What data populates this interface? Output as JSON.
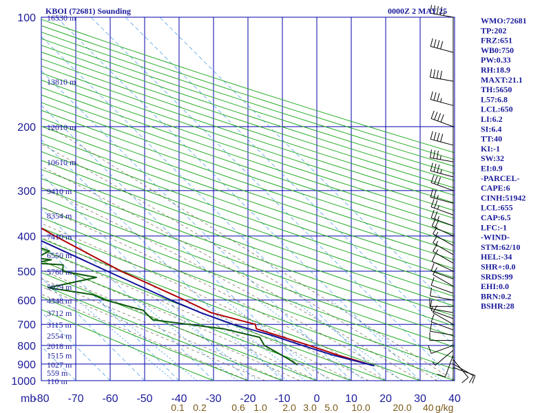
{
  "title_left": "KBOI (72681) Sounding",
  "title_right": "0000Z  2 MAY 25",
  "chart_data": {
    "type": "line",
    "pressure_unit_label": "mb",
    "mixing_unit_label": "g/kg",
    "pressure_levels": [
      100,
      200,
      300,
      400,
      500,
      600,
      700,
      800,
      900,
      1000
    ],
    "temperature_ticks": [
      -80,
      -70,
      -60,
      -50,
      -40,
      -30,
      -20,
      -10,
      0,
      10,
      20,
      30,
      40
    ],
    "mixing_ratio_labels": [
      "0.1",
      "0.2",
      "0.6",
      "1.0",
      "2.0",
      "3.0",
      "5.0",
      "10.0",
      "20.0",
      "40"
    ],
    "height_labels": [
      {
        "p": 100,
        "text": "16530 m"
      },
      {
        "p": 150,
        "text": "13810 m"
      },
      {
        "p": 200,
        "text": "12010 m"
      },
      {
        "p": 250,
        "text": "10610 m"
      },
      {
        "p": 300,
        "text": "9410 m"
      },
      {
        "p": 350,
        "text": "8354 m"
      },
      {
        "p": 400,
        "text": "7410 m"
      },
      {
        "p": 450,
        "text": "6550 m"
      },
      {
        "p": 500,
        "text": "5760 m"
      },
      {
        "p": 550,
        "text": "5029 m"
      },
      {
        "p": 600,
        "text": "4348 m"
      },
      {
        "p": 650,
        "text": "3712 m"
      },
      {
        "p": 700,
        "text": "3115 m"
      },
      {
        "p": 750,
        "text": "2554 m"
      },
      {
        "p": 800,
        "text": "2018 m"
      },
      {
        "p": 850,
        "text": "1515 m"
      },
      {
        "p": 900,
        "text": "1027 m"
      },
      {
        "p": 950,
        "text": "559 m"
      },
      {
        "p": 1000,
        "text": "110 m"
      }
    ],
    "series": [
      {
        "key": "temperature",
        "color": "#b00000",
        "points": [
          [
            100,
            -63
          ],
          [
            150,
            -56
          ],
          [
            200,
            -59
          ],
          [
            230,
            -54
          ],
          [
            300,
            -44
          ],
          [
            400,
            -34
          ],
          [
            500,
            -25
          ],
          [
            600,
            -15
          ],
          [
            650,
            -11
          ],
          [
            700,
            -1.5
          ],
          [
            720,
            -2.5
          ],
          [
            800,
            8
          ],
          [
            850,
            13.5
          ],
          [
            910,
            21
          ]
        ]
      },
      {
        "key": "dewpoint",
        "color": "#0b5a0b",
        "points": [
          [
            170,
            -76
          ],
          [
            200,
            -64
          ],
          [
            215,
            -61
          ],
          [
            225,
            -62
          ],
          [
            260,
            -58
          ],
          [
            300,
            -56
          ],
          [
            330,
            -54
          ],
          [
            360,
            -48
          ],
          [
            380,
            -46
          ],
          [
            400,
            -49
          ],
          [
            410,
            -46
          ],
          [
            440,
            -40
          ],
          [
            460,
            -46
          ],
          [
            465,
            -42
          ],
          [
            475,
            -48
          ],
          [
            480,
            -40
          ],
          [
            500,
            -42
          ],
          [
            520,
            -34
          ],
          [
            555,
            -51
          ],
          [
            580,
            -40
          ],
          [
            600,
            -38
          ],
          [
            640,
            -30
          ],
          [
            680,
            -30
          ],
          [
            720,
            -12
          ],
          [
            760,
            -4
          ],
          [
            800,
            -5
          ],
          [
            870,
            -2
          ],
          [
            905,
            -1
          ]
        ]
      },
      {
        "key": "parcel",
        "color": "#10109a",
        "points": [
          [
            150,
            -82
          ],
          [
            200,
            -73
          ],
          [
            300,
            -55
          ],
          [
            400,
            -41
          ],
          [
            500,
            -29
          ],
          [
            600,
            -19
          ],
          [
            650,
            -14
          ],
          [
            700,
            -8
          ],
          [
            750,
            0
          ],
          [
            800,
            6
          ],
          [
            850,
            12
          ],
          [
            910,
            21
          ]
        ]
      }
    ]
  },
  "wind_profile": [
    {
      "p": 100,
      "dir": 280,
      "spd": 45
    },
    {
      "p": 125,
      "dir": 285,
      "spd": 40
    },
    {
      "p": 150,
      "dir": 280,
      "spd": 40
    },
    {
      "p": 175,
      "dir": 285,
      "spd": 35
    },
    {
      "p": 200,
      "dir": 290,
      "spd": 40
    },
    {
      "p": 225,
      "dir": 285,
      "spd": 40
    },
    {
      "p": 250,
      "dir": 280,
      "spd": 35
    },
    {
      "p": 275,
      "dir": 285,
      "spd": 35
    },
    {
      "p": 300,
      "dir": 290,
      "spd": 30
    },
    {
      "p": 325,
      "dir": 285,
      "spd": 25
    },
    {
      "p": 350,
      "dir": 290,
      "spd": 25
    },
    {
      "p": 375,
      "dir": 290,
      "spd": 25
    },
    {
      "p": 400,
      "dir": 295,
      "spd": 20
    },
    {
      "p": 425,
      "dir": 300,
      "spd": 15
    },
    {
      "p": 450,
      "dir": 300,
      "spd": 15
    },
    {
      "p": 475,
      "dir": 300,
      "spd": 15
    },
    {
      "p": 500,
      "dir": 295,
      "spd": 10
    },
    {
      "p": 525,
      "dir": 290,
      "spd": 10
    },
    {
      "p": 550,
      "dir": 300,
      "spd": 10
    },
    {
      "p": 575,
      "dir": 290,
      "spd": 10
    },
    {
      "p": 600,
      "dir": 280,
      "spd": 10
    },
    {
      "p": 625,
      "dir": 270,
      "spd": 10
    },
    {
      "p": 650,
      "dir": 280,
      "spd": 10
    },
    {
      "p": 675,
      "dir": 290,
      "spd": 5
    },
    {
      "p": 700,
      "dir": 300,
      "spd": 10
    },
    {
      "p": 725,
      "dir": 290,
      "spd": 10
    },
    {
      "p": 750,
      "dir": 280,
      "spd": 10
    },
    {
      "p": 775,
      "dir": 270,
      "spd": 10
    },
    {
      "p": 800,
      "dir": 250,
      "spd": 10
    },
    {
      "p": 825,
      "dir": 230,
      "spd": 5
    },
    {
      "p": 850,
      "dir": 200,
      "spd": 10
    },
    {
      "p": 875,
      "dir": 140,
      "spd": 10
    },
    {
      "p": 900,
      "dir": 120,
      "spd": 10
    },
    {
      "p": 920,
      "dir": 110,
      "spd": 10
    }
  ],
  "indices": [
    "WMO:72681",
    "TP:202",
    "FRZ:651",
    "WB0:750",
    "PW:0.33",
    "RH:18.9",
    "MAXT:21.1",
    "TH:5650",
    "L57:6.8",
    "LCL:650",
    "LI:6.2",
    "SI:6.4",
    "TT:40",
    "KI:-1",
    "SW:32",
    "EI:0.9",
    "-PARCEL-",
    "CAPE:6",
    "CINH:51942",
    "LCL:655",
    "CAP:6.5",
    "LFC:-1",
    "-WIND-",
    "STM:62/10",
    "HEL:-34",
    "SHR+:0.0",
    "SRDS:99",
    "EHI:0.0",
    "BRN:0.2",
    "BSHR:28"
  ],
  "colors": {
    "grid": "#0000aa",
    "dry_adiabat": "#22aa22",
    "moist_adiabat": "#4a3a1a",
    "mixing_ratio": "#2a8adf",
    "temperature": "#b00000",
    "dewpoint": "#0b5a0b",
    "parcel": "#10109a"
  }
}
